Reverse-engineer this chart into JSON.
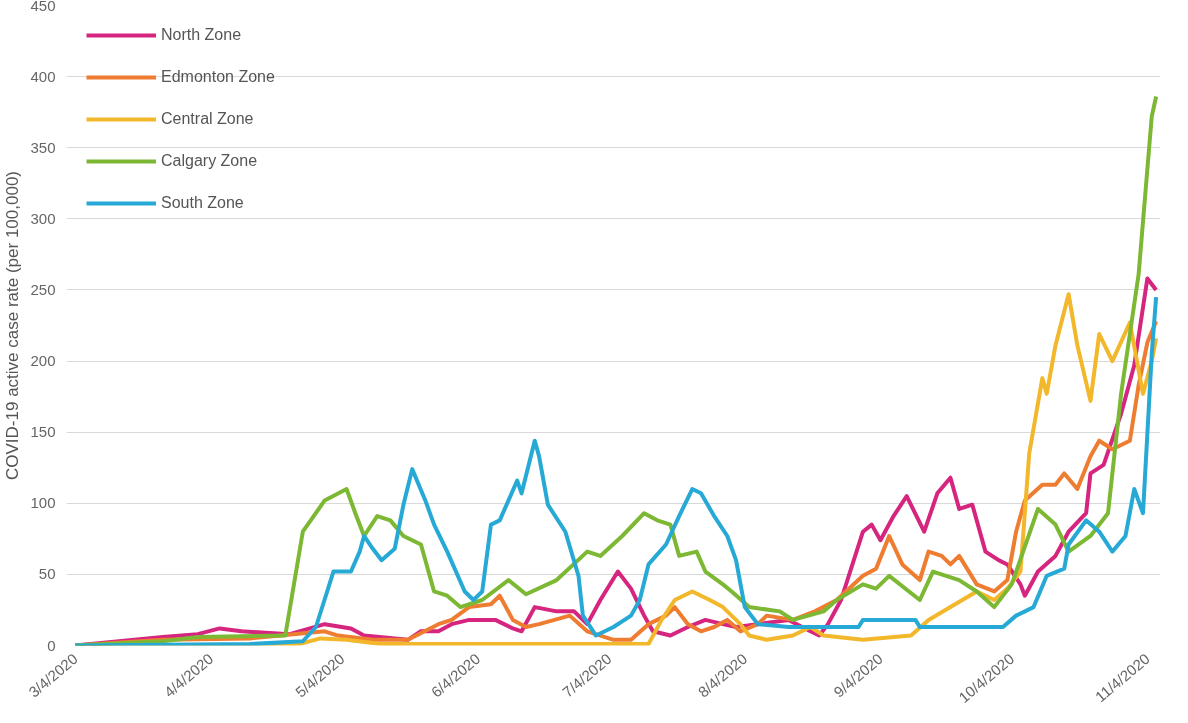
{
  "chart_data": {
    "type": "line",
    "ylabel": "COVID-19 active case rate (per 100,000)",
    "ylim": [
      0,
      450
    ],
    "yticks": [
      0,
      50,
      100,
      150,
      200,
      250,
      300,
      350,
      400,
      450
    ],
    "xlim": [
      "2020-03-02",
      "2020-11-07"
    ],
    "xticks": [
      {
        "value": "2020-03-04",
        "label": "3/4/2020"
      },
      {
        "value": "2020-04-04",
        "label": "4/4/2020"
      },
      {
        "value": "2020-05-04",
        "label": "5/4/2020"
      },
      {
        "value": "2020-06-04",
        "label": "6/4/2020"
      },
      {
        "value": "2020-07-04",
        "label": "7/4/2020"
      },
      {
        "value": "2020-08-04",
        "label": "8/4/2020"
      },
      {
        "value": "2020-09-04",
        "label": "9/4/2020"
      },
      {
        "value": "2020-10-04",
        "label": "10/4/2020"
      },
      {
        "value": "2020-11-04",
        "label": "11/4/2020"
      }
    ],
    "grid": "y",
    "legend": "top left",
    "line_style": "solid",
    "marker": "none",
    "series": [
      {
        "name": "North Zone",
        "color": "#d6257f",
        "x": [
          "2020-03-04",
          "2020-03-24",
          "2020-04-01",
          "2020-04-06",
          "2020-04-11",
          "2020-04-22",
          "2020-04-30",
          "2020-05-06",
          "2020-05-09",
          "2020-05-19",
          "2020-05-22",
          "2020-05-26",
          "2020-05-29",
          "2020-06-02",
          "2020-06-08",
          "2020-06-12",
          "2020-06-14",
          "2020-06-17",
          "2020-06-22",
          "2020-06-26",
          "2020-06-29",
          "2020-07-02",
          "2020-07-06",
          "2020-07-09",
          "2020-07-12",
          "2020-07-14",
          "2020-07-18",
          "2020-07-22",
          "2020-07-26",
          "2020-07-30",
          "2020-08-02",
          "2020-08-07",
          "2020-08-14",
          "2020-08-19",
          "2020-08-21",
          "2020-08-23",
          "2020-08-26",
          "2020-08-31",
          "2020-09-02",
          "2020-09-04",
          "2020-09-07",
          "2020-09-10",
          "2020-09-14",
          "2020-09-17",
          "2020-09-20",
          "2020-09-22",
          "2020-09-25",
          "2020-09-28",
          "2020-10-01",
          "2020-10-03",
          "2020-10-06",
          "2020-10-07",
          "2020-10-10",
          "2020-10-14",
          "2020-10-17",
          "2020-10-21",
          "2020-10-22",
          "2020-10-25",
          "2020-10-29",
          "2020-11-01",
          "2020-11-04",
          "2020-11-06"
        ],
        "values": [
          0,
          6,
          8,
          12,
          10,
          8,
          15,
          12,
          7,
          4,
          10,
          10,
          15,
          18,
          18,
          12,
          10,
          27,
          24,
          24,
          15,
          32,
          52,
          40,
          21,
          10,
          7,
          13,
          18,
          15,
          13,
          15,
          18,
          10,
          7,
          15,
          32,
          80,
          85,
          74,
          91,
          105,
          80,
          107,
          118,
          96,
          99,
          66,
          60,
          57,
          43,
          35,
          52,
          63,
          80,
          93,
          121,
          127,
          163,
          197,
          258,
          250
        ]
      },
      {
        "name": "Edmonton Zone",
        "color": "#ee7d31",
        "x": [
          "2020-03-04",
          "2020-03-24",
          "2020-04-13",
          "2020-04-30",
          "2020-05-03",
          "2020-05-11",
          "2020-05-19",
          "2020-05-26",
          "2020-05-29",
          "2020-06-02",
          "2020-06-07",
          "2020-06-09",
          "2020-06-12",
          "2020-06-15",
          "2020-06-18",
          "2020-06-25",
          "2020-06-29",
          "2020-07-05",
          "2020-07-09",
          "2020-07-13",
          "2020-07-17",
          "2020-07-19",
          "2020-07-22",
          "2020-07-25",
          "2020-07-28",
          "2020-07-31",
          "2020-08-03",
          "2020-08-07",
          "2020-08-09",
          "2020-08-15",
          "2020-08-20",
          "2020-08-25",
          "2020-08-31",
          "2020-09-03",
          "2020-09-06",
          "2020-09-09",
          "2020-09-13",
          "2020-09-15",
          "2020-09-18",
          "2020-09-20",
          "2020-09-22",
          "2020-09-26",
          "2020-09-30",
          "2020-10-03",
          "2020-10-05",
          "2020-10-07",
          "2020-10-11",
          "2020-10-14",
          "2020-10-16",
          "2020-10-19",
          "2020-10-22",
          "2020-10-24",
          "2020-10-27",
          "2020-10-31",
          "2020-11-02",
          "2020-11-04",
          "2020-11-06"
        ],
        "values": [
          0,
          4,
          5,
          10,
          7,
          4,
          4,
          15,
          18,
          27,
          29,
          35,
          18,
          13,
          15,
          21,
          10,
          4,
          4,
          15,
          21,
          27,
          15,
          10,
          13,
          18,
          10,
          15,
          21,
          18,
          24,
          32,
          49,
          54,
          77,
          57,
          46,
          66,
          63,
          57,
          63,
          43,
          38,
          46,
          80,
          102,
          113,
          113,
          121,
          110,
          133,
          144,
          138,
          144,
          183,
          213,
          228
        ]
      },
      {
        "name": "Central Zone",
        "color": "#f2b72a",
        "x": [
          "2020-03-04",
          "2020-04-23",
          "2020-04-29",
          "2020-05-05",
          "2020-05-13",
          "2020-07-13",
          "2020-07-16",
          "2020-07-19",
          "2020-07-23",
          "2020-07-27",
          "2020-07-30",
          "2020-08-03",
          "2020-08-05",
          "2020-08-09",
          "2020-08-15",
          "2020-08-19",
          "2020-08-22",
          "2020-08-31",
          "2020-09-11",
          "2020-09-15",
          "2020-09-20",
          "2020-09-26",
          "2020-09-30",
          "2020-10-03",
          "2020-10-06",
          "2020-10-08",
          "2020-10-11",
          "2020-10-12",
          "2020-10-14",
          "2020-10-17",
          "2020-10-19",
          "2020-10-22",
          "2020-10-24",
          "2020-10-27",
          "2020-10-31",
          "2020-11-03",
          "2020-11-05",
          "2020-11-06"
        ],
        "values": [
          0,
          0,
          5,
          4,
          1,
          1,
          18,
          32,
          38,
          32,
          27,
          15,
          7,
          4,
          7,
          13,
          7,
          4,
          7,
          18,
          27,
          38,
          32,
          40,
          52,
          135,
          188,
          177,
          211,
          247,
          211,
          172,
          219,
          200,
          227,
          177,
          200,
          216
        ]
      },
      {
        "name": "Calgary Zone",
        "color": "#7cb833",
        "x": [
          "2020-03-04",
          "2020-03-24",
          "2020-04-01",
          "2020-04-21",
          "2020-04-25",
          "2020-04-30",
          "2020-05-05",
          "2020-05-07",
          "2020-05-09",
          "2020-05-12",
          "2020-05-15",
          "2020-05-18",
          "2020-05-22",
          "2020-05-25",
          "2020-05-28",
          "2020-05-31",
          "2020-06-05",
          "2020-06-11",
          "2020-06-15",
          "2020-06-22",
          "2020-06-29",
          "2020-07-02",
          "2020-07-07",
          "2020-07-12",
          "2020-07-15",
          "2020-07-18",
          "2020-07-20",
          "2020-07-24",
          "2020-07-26",
          "2020-07-30",
          "2020-08-01",
          "2020-08-05",
          "2020-08-12",
          "2020-08-15",
          "2020-08-22",
          "2020-08-25",
          "2020-08-31",
          "2020-09-03",
          "2020-09-06",
          "2020-09-13",
          "2020-09-16",
          "2020-09-22",
          "2020-09-26",
          "2020-09-30",
          "2020-10-04",
          "2020-10-10",
          "2020-10-14",
          "2020-10-17",
          "2020-10-22",
          "2020-10-26",
          "2020-10-29",
          "2020-11-02",
          "2020-11-05",
          "2020-11-06"
        ],
        "values": [
          0,
          3,
          6,
          7,
          80,
          102,
          110,
          93,
          77,
          91,
          88,
          77,
          71,
          38,
          35,
          27,
          32,
          46,
          36,
          46,
          66,
          63,
          77,
          93,
          88,
          85,
          63,
          66,
          52,
          43,
          38,
          27,
          24,
          18,
          24,
          32,
          43,
          40,
          49,
          32,
          52,
          46,
          38,
          27,
          43,
          96,
          85,
          66,
          77,
          93,
          177,
          261,
          372,
          386
        ]
      },
      {
        "name": "South Zone",
        "color": "#27a9d6",
        "x": [
          "2020-03-04",
          "2020-04-13",
          "2020-04-25",
          "2020-04-28",
          "2020-05-02",
          "2020-05-06",
          "2020-05-08",
          "2020-05-09",
          "2020-05-11",
          "2020-05-13",
          "2020-05-16",
          "2020-05-18",
          "2020-05-20",
          "2020-05-23",
          "2020-05-25",
          "2020-05-28",
          "2020-06-01",
          "2020-06-03",
          "2020-06-05",
          "2020-06-07",
          "2020-06-09",
          "2020-06-13",
          "2020-06-14",
          "2020-06-17",
          "2020-06-18",
          "2020-06-20",
          "2020-06-24",
          "2020-06-27",
          "2020-06-28",
          "2020-07-01",
          "2020-07-05",
          "2020-07-09",
          "2020-07-11",
          "2020-07-13",
          "2020-07-17",
          "2020-07-20",
          "2020-07-23",
          "2020-07-25",
          "2020-07-28",
          "2020-07-31",
          "2020-08-02",
          "2020-08-04",
          "2020-08-07",
          "2020-08-14",
          "2020-08-30",
          "2020-08-31",
          "2020-09-12",
          "2020-09-13",
          "2020-10-02",
          "2020-10-05",
          "2020-10-09",
          "2020-10-12",
          "2020-10-16",
          "2020-10-17",
          "2020-10-21",
          "2020-10-24",
          "2020-10-27",
          "2020-10-30",
          "2020-11-01",
          "2020-11-03",
          "2020-11-05",
          "2020-11-06"
        ],
        "values": [
          0,
          1,
          3,
          13,
          52,
          52,
          66,
          77,
          68,
          60,
          68,
          99,
          124,
          102,
          85,
          66,
          38,
          32,
          38,
          85,
          88,
          116,
          107,
          144,
          133,
          99,
          80,
          49,
          21,
          7,
          13,
          21,
          32,
          57,
          71,
          91,
          110,
          107,
          91,
          77,
          60,
          27,
          15,
          13,
          13,
          18,
          18,
          13,
          13,
          21,
          27,
          49,
          54,
          71,
          88,
          80,
          66,
          77,
          110,
          93,
          205,
          245
        ]
      }
    ]
  }
}
